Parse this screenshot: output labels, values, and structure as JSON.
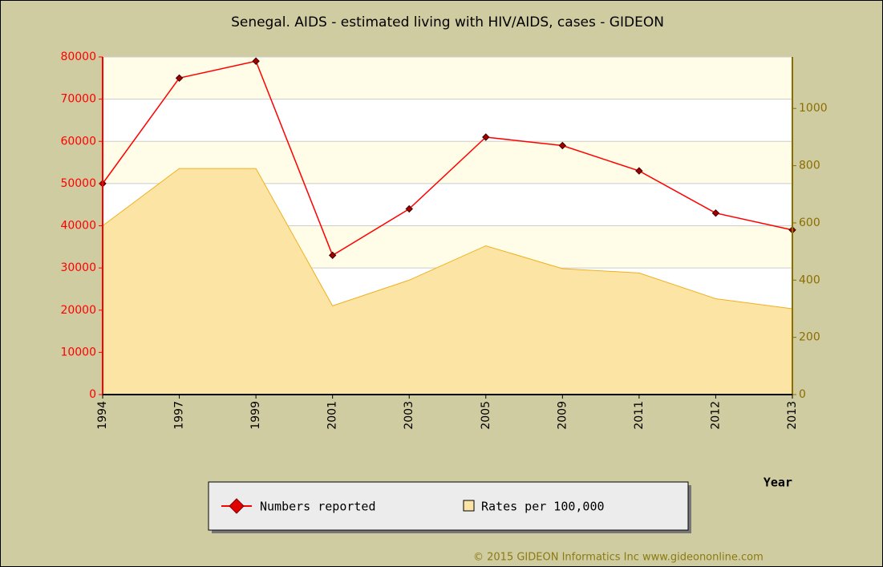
{
  "chart_data": {
    "type": "line",
    "title": "Senegal. AIDS - estimated living with HIV/AIDS, cases - GIDEON",
    "x_label": "Year",
    "credit": "© 2015 GIDEON Informatics Inc www.gideononline.com",
    "categories": [
      "1994",
      "1997",
      "1999",
      "2001",
      "2003",
      "2005",
      "2009",
      "2011",
      "2012",
      "2013"
    ],
    "series": [
      {
        "name": "Numbers reported",
        "color": "#ff0000",
        "kind": "line",
        "values": [
          50000,
          75000,
          79000,
          33000,
          44000,
          61000,
          59000,
          53000,
          43000,
          39000
        ]
      },
      {
        "name": "Rates per 100,000",
        "color": "#fce5a4",
        "kind": "area",
        "axis": "y2",
        "values": [
          590,
          790,
          790,
          310,
          400,
          520,
          440,
          425,
          335,
          300
        ]
      }
    ],
    "ylim": [
      0,
      80000
    ],
    "yticks": [
      0,
      10000,
      20000,
      30000,
      40000,
      50000,
      60000,
      70000,
      80000
    ],
    "y2lim": [
      0,
      1180
    ],
    "y2ticks": [
      0,
      200,
      400,
      600,
      800,
      1000
    ],
    "grid": true
  }
}
